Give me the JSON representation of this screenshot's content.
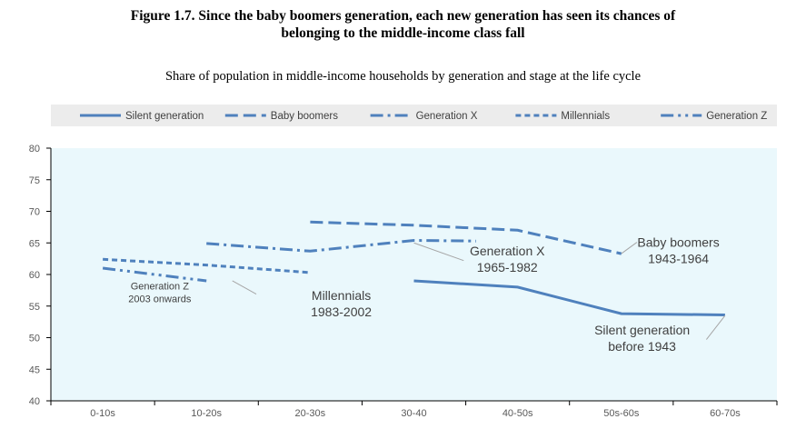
{
  "chart_data": {
    "type": "line",
    "title_line1": "Figure 1.7. Since the baby boomers generation, each new generation has seen its chances of",
    "title_line2": "belonging to the middle-income class fall",
    "subtitle": "Share of population in middle-income households by generation and stage at the life cycle",
    "categories": [
      "0-10s",
      "10-20s",
      "20-30s",
      "30-40",
      "40-50s",
      "50s-60s",
      "60-70s"
    ],
    "ylim": [
      40,
      80
    ],
    "yticks": [
      40,
      45,
      50,
      55,
      60,
      65,
      70,
      75,
      80
    ],
    "grid": false,
    "legend_position": "top",
    "colors": {
      "series": "#4f81bd",
      "plot_bg": "#eaf8fc",
      "legend_bg": "#ececec",
      "axis": "#000000",
      "leader": "#a6a6a6"
    },
    "series": [
      {
        "name": "Silent generation",
        "dash": "solid",
        "points": [
          [
            3,
            59.0
          ],
          [
            4,
            58.0
          ],
          [
            5,
            53.8
          ],
          [
            6,
            53.6
          ]
        ]
      },
      {
        "name": "Baby boomers",
        "dash": "dashed",
        "points": [
          [
            2,
            68.3
          ],
          [
            3,
            67.8
          ],
          [
            4,
            67.0
          ],
          [
            5,
            63.3
          ]
        ]
      },
      {
        "name": "Generation X",
        "dash": "dashdot",
        "points": [
          [
            1,
            64.9
          ],
          [
            2,
            63.7
          ],
          [
            3,
            65.4
          ],
          [
            3.6,
            65.3
          ]
        ]
      },
      {
        "name": "Millennials",
        "dash": "shortdash",
        "points": [
          [
            0,
            62.4
          ],
          [
            1,
            61.5
          ],
          [
            2,
            60.3
          ]
        ]
      },
      {
        "name": "Generation Z",
        "dash": "dashdotdot",
        "points": [
          [
            0,
            61.0
          ],
          [
            1,
            59.0
          ]
        ]
      }
    ],
    "annotations": [
      {
        "lines": [
          "Generation Z",
          "2003 onwards"
        ],
        "size": "small",
        "text_at": [
          0.55,
          57.6
        ],
        "leader": []
      },
      {
        "lines": [
          "Millennials",
          "1983-2002"
        ],
        "size": "large",
        "text_at": [
          2.3,
          56.0
        ],
        "leader": [
          [
            1.25,
            59.0
          ],
          [
            1.48,
            56.9
          ]
        ]
      },
      {
        "lines": [
          "Generation X",
          "1965-1982"
        ],
        "size": "large",
        "text_at": [
          3.9,
          63.0
        ],
        "leader": [
          [
            3.0,
            65.0
          ],
          [
            3.48,
            62.2
          ]
        ]
      },
      {
        "lines": [
          "Baby boomers",
          "1943-1964"
        ],
        "size": "large",
        "text_at": [
          5.55,
          64.4
        ],
        "leader": [
          [
            5.0,
            63.3
          ],
          [
            5.15,
            65.1
          ]
        ]
      },
      {
        "lines": [
          "Silent generation",
          "before 1943"
        ],
        "size": "large",
        "text_at": [
          5.2,
          50.5
        ],
        "leader": [
          [
            5.82,
            49.7
          ],
          [
            6.0,
            53.5
          ]
        ]
      }
    ]
  }
}
